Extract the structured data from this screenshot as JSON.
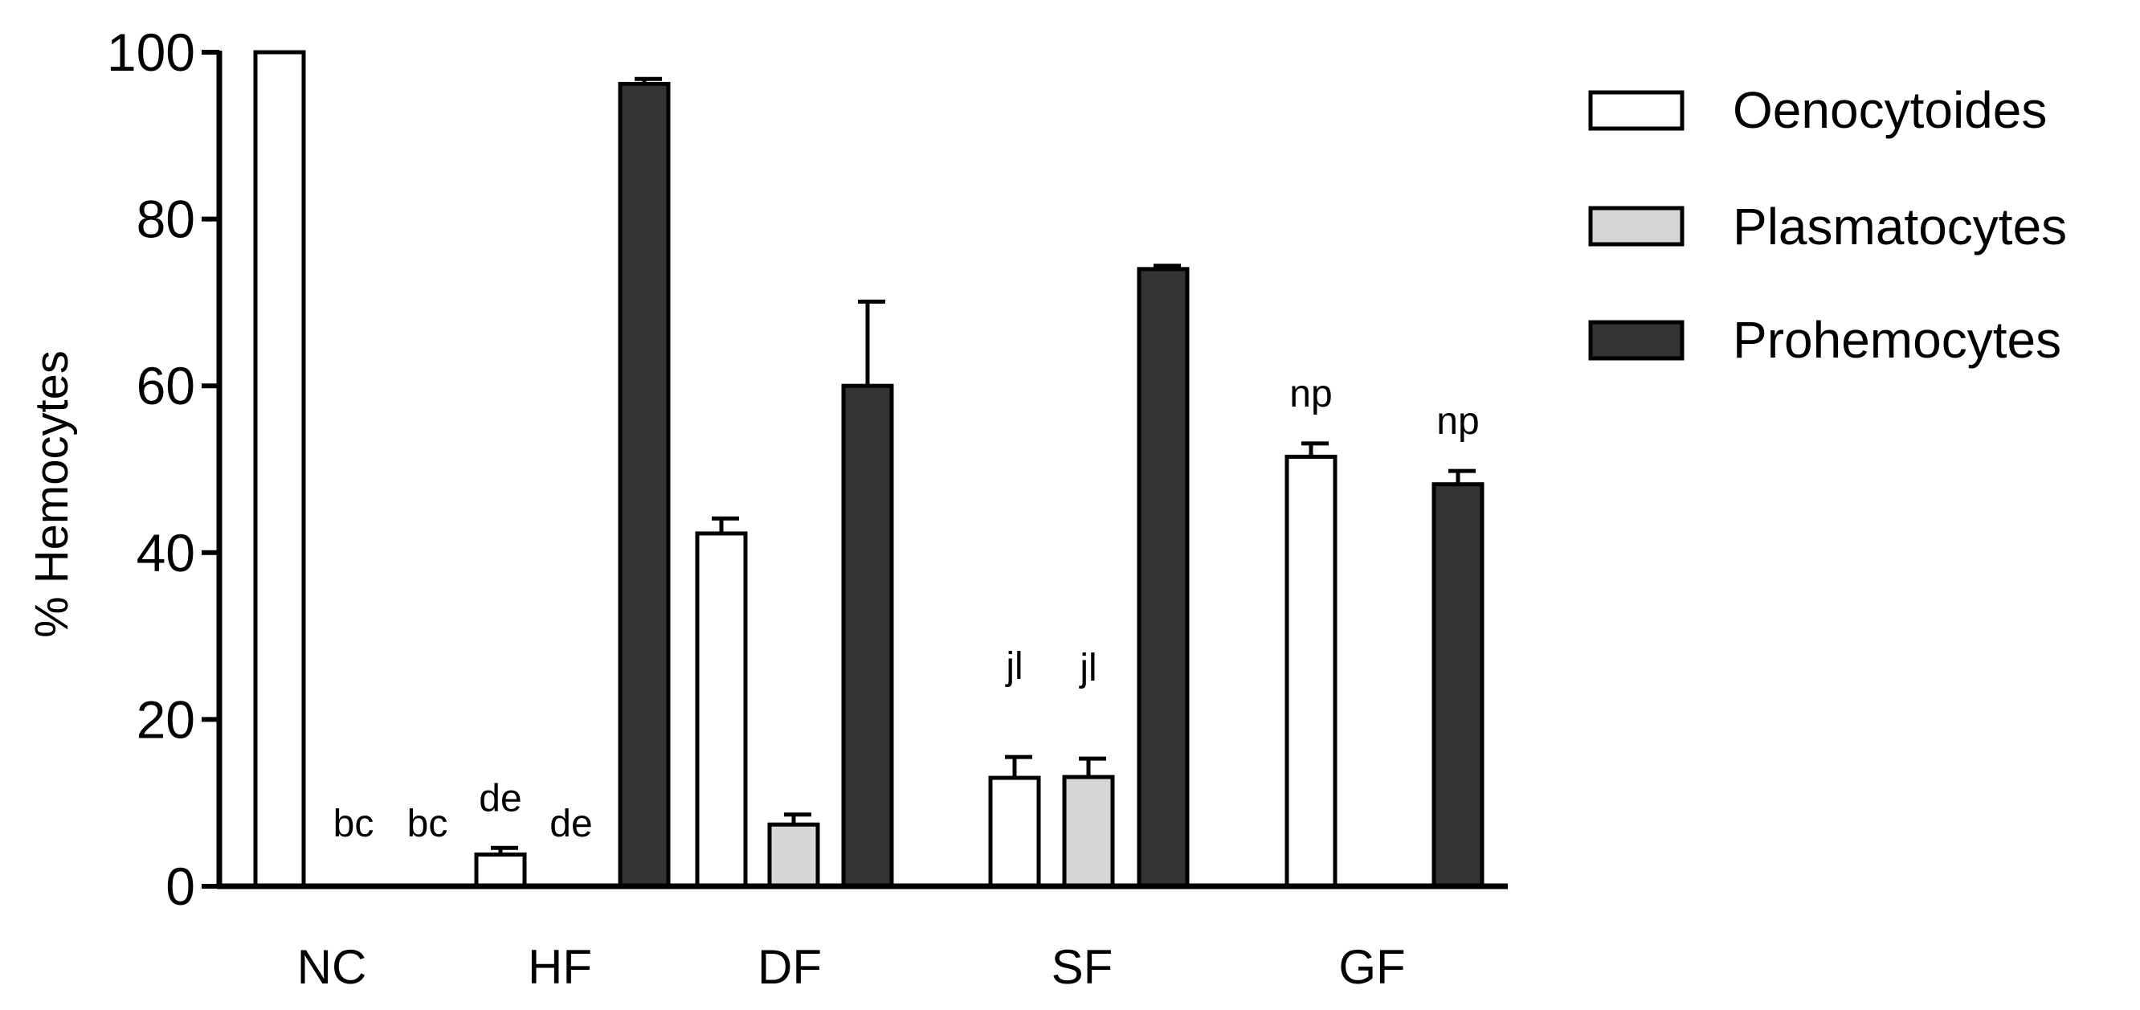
{
  "chart_data": {
    "type": "bar",
    "title": "",
    "xlabel": "",
    "ylabel": "% Hemocytes",
    "ylim": [
      0,
      100
    ],
    "yticks": [
      "0",
      "20",
      "40",
      "60",
      "80",
      "100"
    ],
    "grid": false,
    "legend_position": "top-right",
    "categories": [
      "NC",
      "HF",
      "DF",
      "SF",
      "GF"
    ],
    "colors": {
      "Oenocytoides": "#ffffff",
      "Plasmatocytes": "#d6d6d6",
      "Prohemocytes": "#333333",
      "stroke": "#000000"
    },
    "series": [
      {
        "name": "Oenocytoides",
        "values": [
          100,
          3.8,
          42.3,
          13.0,
          51.5
        ],
        "errors": [
          0,
          0.8,
          1.8,
          2.5,
          1.6
        ]
      },
      {
        "name": "Plasmatocytes",
        "values": [
          0,
          0,
          7.4,
          13.1,
          0
        ],
        "errors": [
          0,
          0,
          1.2,
          2.2,
          0
        ]
      },
      {
        "name": "Prohemocytes",
        "values": [
          0,
          96.2,
          60.0,
          74.0,
          48.2
        ],
        "errors": [
          0,
          0.6,
          10.1,
          0.4,
          1.6
        ]
      }
    ],
    "annotations": [
      {
        "text": "bc",
        "category": "NC",
        "series": "Plasmatocytes"
      },
      {
        "text": "bc",
        "category": "NC",
        "series": "Prohemocytes"
      },
      {
        "text": "de",
        "category": "HF",
        "series": "Oenocytoides"
      },
      {
        "text": "de",
        "category": "HF",
        "series": "Plasmatocytes"
      },
      {
        "text": "jl",
        "category": "SF",
        "series": "Oenocytoides"
      },
      {
        "text": "jl",
        "category": "SF",
        "series": "Plasmatocytes"
      },
      {
        "text": "np",
        "category": "GF",
        "series": "Oenocytoides"
      },
      {
        "text": "np",
        "category": "GF",
        "series": "Prohemocytes"
      }
    ]
  }
}
